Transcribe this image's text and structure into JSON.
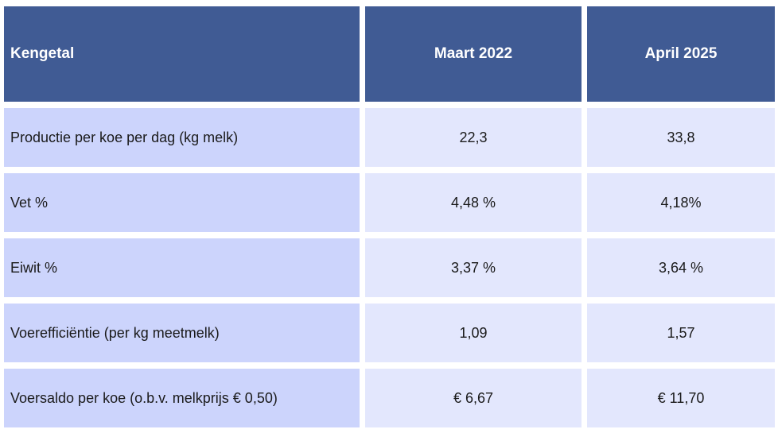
{
  "table": {
    "headers": [
      "Kengetal",
      "Maart 2022",
      "April 2025"
    ],
    "rows": [
      {
        "label": "Productie per koe per dag (kg melk)",
        "maart_2022": "22,3",
        "april_2025": "33,8"
      },
      {
        "label": "Vet %",
        "maart_2022": "4,48 %",
        "april_2025": "4,18%"
      },
      {
        "label": "Eiwit %",
        "maart_2022": "3,37 %",
        "april_2025": "3,64 %"
      },
      {
        "label": "Voerefficiëntie (per kg meetmelk)",
        "maart_2022": "1,09",
        "april_2025": "1,57"
      },
      {
        "label": "Voersaldo per koe (o.b.v. melkprijs € 0,50)",
        "maart_2022": "€ 6,67",
        "april_2025": "€ 11,70"
      }
    ]
  },
  "colors": {
    "header_bg": "#405b94",
    "label_bg": "#ccd4fc",
    "value_bg": "#e3e7fd"
  }
}
